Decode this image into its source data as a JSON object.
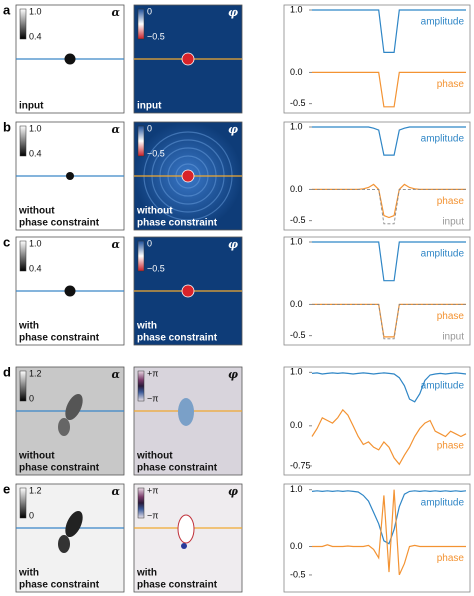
{
  "panels": [
    {
      "label": "a",
      "amplitude": {
        "symbol": "α",
        "colorbar": [
          "1.0",
          "0.4"
        ],
        "caption": [
          "input"
        ]
      },
      "phase": {
        "symbol": "φ",
        "colorbar": [
          "0",
          "−0.5"
        ],
        "caption": [
          "input"
        ]
      }
    },
    {
      "label": "b",
      "amplitude": {
        "symbol": "α",
        "colorbar": [
          "1.0",
          "0.4"
        ],
        "caption": [
          "without",
          "phase constraint"
        ]
      },
      "phase": {
        "symbol": "φ",
        "colorbar": [
          "0",
          "−0.5"
        ],
        "caption": [
          "without",
          "phase constraint"
        ]
      }
    },
    {
      "label": "c",
      "amplitude": {
        "symbol": "α",
        "colorbar": [
          "1.0",
          "0.4"
        ],
        "caption": [
          "with",
          "phase constraint"
        ]
      },
      "phase": {
        "symbol": "φ",
        "colorbar": [
          "0",
          "−0.5"
        ],
        "caption": [
          "with",
          "phase constraint"
        ]
      }
    },
    {
      "label": "d",
      "amplitude": {
        "symbol": "α",
        "colorbar": [
          "1.2",
          "0"
        ],
        "caption": [
          "without",
          "phase constraint"
        ]
      },
      "phase": {
        "symbol": "φ",
        "colorbar": [
          "+π",
          "−π"
        ],
        "caption": [
          "without",
          "phase constraint"
        ]
      }
    },
    {
      "label": "e",
      "amplitude": {
        "symbol": "α",
        "colorbar": [
          "1.2",
          "0"
        ],
        "caption": [
          "with",
          "phase constraint"
        ]
      },
      "phase": {
        "symbol": "φ",
        "colorbar": [
          "+π",
          "−π"
        ],
        "caption": [
          "with",
          "phase constraint"
        ]
      }
    }
  ],
  "chart_data": [
    {
      "type": "line",
      "x": [
        0,
        1,
        2,
        3,
        4,
        5,
        6,
        7,
        8,
        9,
        10,
        11,
        12,
        13,
        14,
        15,
        16,
        17,
        18,
        19,
        20,
        21,
        22,
        23,
        24,
        25,
        26,
        27,
        28,
        29,
        30
      ],
      "xlim": [
        0,
        30
      ],
      "ylim": [
        -0.65,
        1.08
      ],
      "yticks": [
        {
          "value": 1,
          "label": "1.0"
        },
        {
          "value": 0,
          "label": "0.0"
        },
        -0.5
      ],
      "series": [
        {
          "name": "amplitude",
          "color": "#2f86c6",
          "values": [
            1,
            1,
            1,
            1,
            1,
            1,
            1,
            1,
            1,
            1,
            1,
            1,
            1,
            1,
            0.32,
            0.32,
            0.32,
            1,
            1,
            1,
            1,
            1,
            1,
            1,
            1,
            1,
            1,
            1,
            1,
            1,
            1
          ]
        },
        {
          "name": "phase",
          "color": "#f39333",
          "values": [
            0,
            0,
            0,
            0,
            0,
            0,
            0,
            0,
            0,
            0,
            0,
            0,
            0,
            0,
            -0.55,
            -0.55,
            -0.55,
            0,
            0,
            0,
            0,
            0,
            0,
            0,
            0,
            0,
            0,
            0,
            0,
            0,
            0
          ]
        }
      ]
    },
    {
      "type": "line",
      "x": [
        0,
        1,
        2,
        3,
        4,
        5,
        6,
        7,
        8,
        9,
        10,
        11,
        12,
        13,
        14,
        15,
        16,
        17,
        18,
        19,
        20,
        21,
        22,
        23,
        24,
        25,
        26,
        27,
        28,
        29,
        30
      ],
      "xlim": [
        0,
        30
      ],
      "ylim": [
        -0.65,
        1.08
      ],
      "yticks": [
        {
          "value": 1,
          "label": "1.0"
        },
        {
          "value": 0,
          "label": "0.0"
        },
        -0.5
      ],
      "series": [
        {
          "name": "amplitude",
          "color": "#2f86c6",
          "values": [
            1,
            1,
            1,
            1,
            1,
            1,
            1,
            1,
            1,
            1,
            1,
            1,
            0.98,
            0.95,
            0.55,
            0.55,
            0.55,
            0.95,
            0.98,
            1,
            1,
            1,
            1,
            1,
            1,
            1,
            1,
            1,
            1,
            1,
            1
          ]
        },
        {
          "name": "phase",
          "color": "#f39333",
          "values": [
            0,
            0,
            0,
            0,
            0,
            0,
            0,
            0,
            0,
            0,
            0.01,
            0.03,
            0.08,
            0,
            -0.42,
            -0.45,
            -0.42,
            0,
            0.08,
            0.03,
            0.01,
            0,
            0,
            0,
            0,
            0,
            0,
            0,
            0,
            0,
            0
          ]
        },
        {
          "name": "input",
          "color": "#888888",
          "dashed": true,
          "values": [
            0,
            0,
            0,
            0,
            0,
            0,
            0,
            0,
            0,
            0,
            0,
            0,
            0,
            0,
            -0.55,
            -0.55,
            -0.55,
            0,
            0,
            0,
            0,
            0,
            0,
            0,
            0,
            0,
            0,
            0,
            0,
            0,
            0
          ]
        }
      ]
    },
    {
      "type": "line",
      "x": [
        0,
        1,
        2,
        3,
        4,
        5,
        6,
        7,
        8,
        9,
        10,
        11,
        12,
        13,
        14,
        15,
        16,
        17,
        18,
        19,
        20,
        21,
        22,
        23,
        24,
        25,
        26,
        27,
        28,
        29,
        30
      ],
      "xlim": [
        0,
        30
      ],
      "ylim": [
        -0.65,
        1.08
      ],
      "yticks": [
        {
          "value": 1,
          "label": "1.0"
        },
        {
          "value": 0,
          "label": "0.0"
        },
        -0.5
      ],
      "series": [
        {
          "name": "amplitude",
          "color": "#2f86c6",
          "values": [
            1,
            1,
            1,
            1,
            1,
            1,
            1,
            1,
            1,
            1,
            1,
            1,
            1,
            1,
            0.38,
            0.38,
            0.38,
            1,
            1,
            1,
            1,
            1,
            1,
            1,
            1,
            1,
            1,
            1,
            1,
            1,
            1
          ]
        },
        {
          "name": "phase",
          "color": "#f39333",
          "values": [
            0,
            0,
            0,
            0,
            0,
            0,
            0,
            0,
            0,
            0,
            0,
            0,
            0,
            0,
            -0.52,
            -0.52,
            -0.52,
            0,
            0,
            0,
            0,
            0,
            0,
            0,
            0,
            0,
            0,
            0,
            0,
            0,
            0
          ]
        },
        {
          "name": "input",
          "color": "#888888",
          "dashed": true,
          "values": [
            0,
            0,
            0,
            0,
            0,
            0,
            0,
            0,
            0,
            0,
            0,
            0,
            0,
            0,
            -0.55,
            -0.55,
            -0.55,
            0,
            0,
            0,
            0,
            0,
            0,
            0,
            0,
            0,
            0,
            0,
            0,
            0,
            0
          ]
        }
      ]
    },
    {
      "type": "line",
      "x": [
        0,
        1,
        2,
        3,
        4,
        5,
        6,
        7,
        8,
        9,
        10,
        11,
        12,
        13,
        14,
        15,
        16,
        17,
        18,
        19,
        20,
        21,
        22,
        23,
        24,
        25,
        26,
        27,
        28,
        29,
        30
      ],
      "xlim": [
        0,
        30
      ],
      "ylim": [
        -0.92,
        1.1
      ],
      "yticks": [
        {
          "value": 1,
          "label": "1.0"
        },
        {
          "value": 0,
          "label": "0.0"
        },
        -0.75
      ],
      "series": [
        {
          "name": "amplitude",
          "color": "#2f86c6",
          "values": [
            0.98,
            0.99,
            0.97,
            0.98,
            0.99,
            0.98,
            0.99,
            0.98,
            0.97,
            0.98,
            0.99,
            0.98,
            0.97,
            0.98,
            0.99,
            0.98,
            0.97,
            0.9,
            0.75,
            0.5,
            0.45,
            0.6,
            0.85,
            0.95,
            0.97,
            0.98,
            0.97,
            0.98,
            0.99,
            0.98,
            0.97
          ]
        },
        {
          "name": "phase",
          "color": "#f39333",
          "values": [
            -0.2,
            -0.05,
            0.15,
            0.1,
            0.05,
            0.15,
            0.3,
            0.2,
            0,
            -0.2,
            -0.35,
            -0.3,
            -0.4,
            -0.45,
            -0.3,
            -0.4,
            -0.6,
            -0.72,
            -0.55,
            -0.4,
            -0.2,
            -0.05,
            0.05,
            0.1,
            -0.1,
            -0.15,
            -0.2,
            -0.1,
            -0.15,
            -0.2,
            -0.15
          ]
        }
      ]
    },
    {
      "type": "line",
      "x": [
        0,
        1,
        2,
        3,
        4,
        5,
        6,
        7,
        8,
        9,
        10,
        11,
        12,
        13,
        14,
        15,
        16,
        17,
        18,
        19,
        20,
        21,
        22,
        23,
        24,
        25,
        26,
        27,
        28,
        29,
        30
      ],
      "xlim": [
        0,
        30
      ],
      "ylim": [
        -0.8,
        1.1
      ],
      "yticks": [
        {
          "value": 1,
          "label": "1.0"
        },
        {
          "value": 0,
          "label": "0.0"
        },
        -0.5
      ],
      "series": [
        {
          "name": "amplitude",
          "color": "#2f86c6",
          "values": [
            0.97,
            0.98,
            0.97,
            0.98,
            0.97,
            0.98,
            0.97,
            0.98,
            0.97,
            0.96,
            0.9,
            0.8,
            0.6,
            0.4,
            0.1,
            0.05,
            0.3,
            0.7,
            0.92,
            0.97,
            0.98,
            0.97,
            0.98,
            0.97,
            0.98,
            0.97,
            0.98,
            0.97,
            0.98,
            0.97,
            0.98
          ]
        },
        {
          "name": "phase",
          "color": "#f39333",
          "values": [
            0,
            0,
            0,
            0.03,
            0,
            0,
            0,
            0.01,
            0,
            0,
            0,
            0.02,
            -0.05,
            -0.2,
            0.9,
            -0.45,
            1,
            -0.5,
            -0.3,
            0,
            0.02,
            0,
            0,
            0,
            0,
            0,
            0,
            0,
            0,
            0,
            0
          ]
        }
      ]
    }
  ]
}
